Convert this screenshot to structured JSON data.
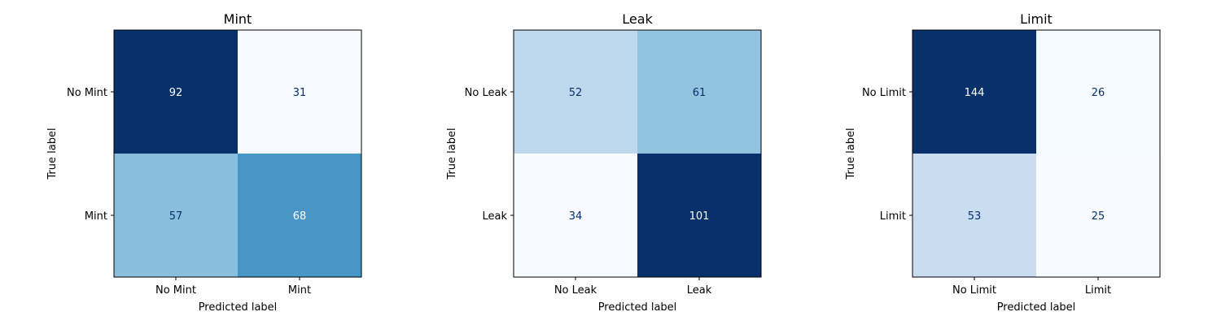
{
  "chart_data": [
    {
      "type": "heatmap",
      "title": "Mint",
      "xlabel": "Predicted label",
      "ylabel": "True label",
      "x_categories": [
        "No Mint",
        "Mint"
      ],
      "y_categories": [
        "No Mint",
        "Mint"
      ],
      "values": [
        [
          92,
          31
        ],
        [
          57,
          68
        ]
      ],
      "colormap": "Blues",
      "grid": false
    },
    {
      "type": "heatmap",
      "title": "Leak",
      "xlabel": "Predicted label",
      "ylabel": "True label",
      "x_categories": [
        "No Leak",
        "Leak"
      ],
      "y_categories": [
        "No Leak",
        "Leak"
      ],
      "values": [
        [
          52,
          61
        ],
        [
          34,
          101
        ]
      ],
      "colormap": "Blues",
      "grid": false
    },
    {
      "type": "heatmap",
      "title": "Limit",
      "xlabel": "Predicted label",
      "ylabel": "True label",
      "x_categories": [
        "No Limit",
        "Limit"
      ],
      "y_categories": [
        "No Limit",
        "Limit"
      ],
      "values": [
        [
          144,
          26
        ],
        [
          53,
          25
        ]
      ],
      "colormap": "Blues",
      "grid": false
    }
  ]
}
